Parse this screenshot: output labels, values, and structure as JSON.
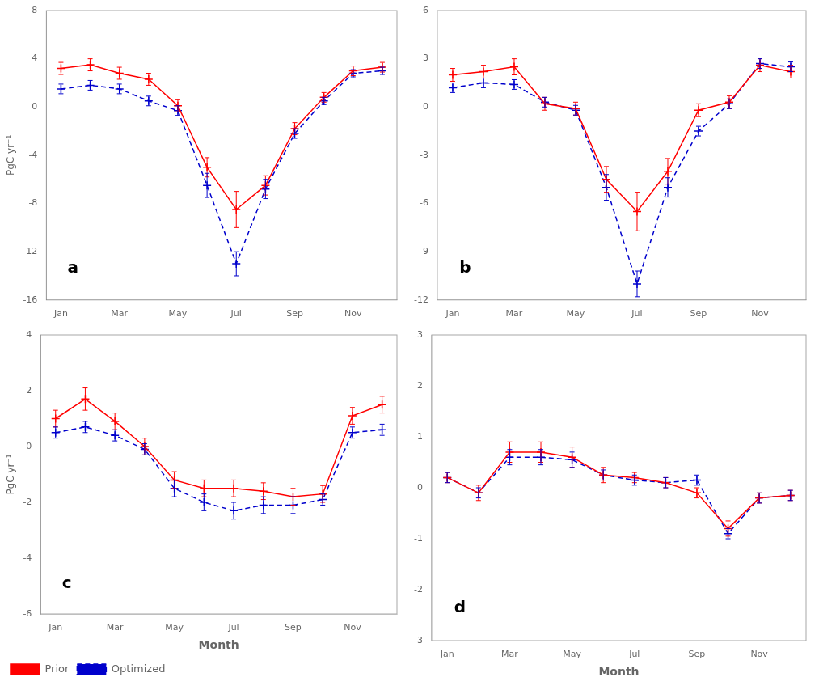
{
  "chart_data": [
    {
      "type": "line",
      "x": [
        1,
        2,
        3,
        4,
        5,
        6,
        7,
        8,
        9,
        10,
        11,
        12
      ],
      "xlim": [
        0.5,
        12.5
      ],
      "xticks": [
        {
          "value": 1,
          "label": "Jan"
        },
        {
          "value": 3,
          "label": "Mar"
        },
        {
          "value": 5,
          "label": "May"
        },
        {
          "value": 7,
          "label": "Jul"
        },
        {
          "value": 9,
          "label": "Sep"
        },
        {
          "value": 11,
          "label": "Nov"
        }
      ],
      "ylim": [
        -16,
        8
      ],
      "yticks": [
        -16,
        -12,
        -8,
        -4,
        0,
        4,
        8
      ],
      "ylabel": "PgC yr⁻¹",
      "grid": false,
      "annotations": [
        {
          "text": "a"
        }
      ],
      "series": [
        {
          "name": "Prior",
          "color": "#ff0000",
          "marker": "plus",
          "line_style": "solid",
          "values": [
            3.2,
            3.5,
            2.8,
            2.3,
            0.1,
            -5.0,
            -8.5,
            -6.5,
            -1.8,
            0.8,
            3.0,
            3.3
          ],
          "errors": [
            0.5,
            0.5,
            0.5,
            0.5,
            0.5,
            0.8,
            1.5,
            0.8,
            0.5,
            0.4,
            0.4,
            0.4
          ]
        },
        {
          "name": "Optimized",
          "color": "#0000cc",
          "marker": "plus",
          "line_style": "dashed",
          "values": [
            1.5,
            1.8,
            1.5,
            0.5,
            -0.3,
            -6.5,
            -13.0,
            -6.8,
            -2.2,
            0.5,
            2.8,
            3.0
          ],
          "errors": [
            0.4,
            0.4,
            0.4,
            0.4,
            0.4,
            1.0,
            1.0,
            0.8,
            0.4,
            0.3,
            0.3,
            0.3
          ]
        }
      ]
    },
    {
      "type": "line",
      "x": [
        1,
        2,
        3,
        4,
        5,
        6,
        7,
        8,
        9,
        10,
        11,
        12
      ],
      "xlim": [
        0.5,
        12.5
      ],
      "xticks": [
        {
          "value": 1,
          "label": "Jan"
        },
        {
          "value": 3,
          "label": "Mar"
        },
        {
          "value": 5,
          "label": "May"
        },
        {
          "value": 7,
          "label": "Jul"
        },
        {
          "value": 9,
          "label": "Sep"
        },
        {
          "value": 11,
          "label": "Nov"
        }
      ],
      "ylim": [
        -12,
        6
      ],
      "yticks": [
        -12,
        -9,
        -6,
        -3,
        0,
        3,
        6
      ],
      "grid": false,
      "annotations": [
        {
          "text": "b"
        }
      ],
      "series": [
        {
          "name": "Prior",
          "color": "#ff0000",
          "marker": "plus",
          "line_style": "solid",
          "values": [
            2.0,
            2.2,
            2.5,
            0.2,
            -0.1,
            -4.5,
            -6.5,
            -4.0,
            -0.2,
            0.3,
            2.6,
            2.2
          ],
          "errors": [
            0.4,
            0.4,
            0.5,
            0.4,
            0.4,
            0.8,
            1.2,
            0.8,
            0.4,
            0.4,
            0.4,
            0.4
          ]
        },
        {
          "name": "Optimized",
          "color": "#0000cc",
          "marker": "plus",
          "line_style": "dashed",
          "values": [
            1.2,
            1.5,
            1.4,
            0.3,
            -0.2,
            -5.0,
            -11.0,
            -5.0,
            -1.5,
            0.2,
            2.7,
            2.5
          ],
          "errors": [
            0.3,
            0.3,
            0.3,
            0.3,
            0.3,
            0.8,
            0.8,
            0.6,
            0.3,
            0.3,
            0.3,
            0.3
          ]
        }
      ]
    },
    {
      "type": "line",
      "x": [
        1,
        2,
        3,
        4,
        5,
        6,
        7,
        8,
        9,
        10,
        11,
        12
      ],
      "xlim": [
        0.5,
        12.5
      ],
      "xticks": [
        {
          "value": 1,
          "label": "Jan"
        },
        {
          "value": 3,
          "label": "Mar"
        },
        {
          "value": 5,
          "label": "May"
        },
        {
          "value": 7,
          "label": "Jul"
        },
        {
          "value": 9,
          "label": "Sep"
        },
        {
          "value": 11,
          "label": "Nov"
        }
      ],
      "ylim": [
        -6,
        4
      ],
      "yticks": [
        -6,
        -4,
        -2,
        0,
        2,
        4
      ],
      "ylabel": "PgC yr⁻¹",
      "xlabel": "Month",
      "grid": false,
      "legend": "lower left",
      "annotations": [
        {
          "text": "c"
        }
      ],
      "series": [
        {
          "name": "Prior",
          "color": "#ff0000",
          "marker": "plus",
          "line_style": "solid",
          "values": [
            1.0,
            1.7,
            0.9,
            0.0,
            -1.2,
            -1.5,
            -1.5,
            -1.6,
            -1.8,
            -1.7,
            1.1,
            1.5
          ],
          "errors": [
            0.3,
            0.4,
            0.3,
            0.3,
            0.3,
            0.3,
            0.3,
            0.3,
            0.3,
            0.3,
            0.3,
            0.3
          ]
        },
        {
          "name": "Optimized",
          "color": "#0000cc",
          "marker": "plus",
          "line_style": "dashed",
          "values": [
            0.5,
            0.7,
            0.4,
            -0.1,
            -1.5,
            -2.0,
            -2.3,
            -2.1,
            -2.1,
            -1.9,
            0.5,
            0.6
          ],
          "errors": [
            0.2,
            0.2,
            0.2,
            0.2,
            0.3,
            0.3,
            0.3,
            0.3,
            0.3,
            0.2,
            0.2,
            0.2
          ]
        }
      ]
    },
    {
      "type": "line",
      "x": [
        1,
        2,
        3,
        4,
        5,
        6,
        7,
        8,
        9,
        10,
        11,
        12
      ],
      "xlim": [
        0.5,
        12.5
      ],
      "xticks": [
        {
          "value": 1,
          "label": "Jan"
        },
        {
          "value": 3,
          "label": "Mar"
        },
        {
          "value": 5,
          "label": "May"
        },
        {
          "value": 7,
          "label": "Jul"
        },
        {
          "value": 9,
          "label": "Sep"
        },
        {
          "value": 11,
          "label": "Nov"
        }
      ],
      "ylim": [
        -3,
        3
      ],
      "yticks": [
        -3,
        -2,
        -1,
        0,
        1,
        2,
        3
      ],
      "xlabel": "Month",
      "grid": false,
      "annotations": [
        {
          "text": "d"
        }
      ],
      "series": [
        {
          "name": "Prior",
          "color": "#ff0000",
          "marker": "plus",
          "line_style": "solid",
          "values": [
            0.2,
            -0.1,
            0.7,
            0.7,
            0.6,
            0.25,
            0.2,
            0.1,
            -0.1,
            -0.8,
            -0.2,
            -0.15
          ],
          "errors": [
            0.1,
            0.15,
            0.2,
            0.2,
            0.2,
            0.15,
            0.1,
            0.1,
            0.1,
            0.15,
            0.1,
            0.1
          ]
        },
        {
          "name": "Optimized",
          "color": "#0000cc",
          "marker": "plus",
          "line_style": "dashed",
          "values": [
            0.2,
            -0.1,
            0.6,
            0.6,
            0.55,
            0.25,
            0.15,
            0.1,
            0.15,
            -0.9,
            -0.2,
            -0.15
          ],
          "errors": [
            0.1,
            0.1,
            0.15,
            0.15,
            0.15,
            0.1,
            0.1,
            0.1,
            0.1,
            0.1,
            0.1,
            0.1
          ]
        }
      ]
    }
  ]
}
